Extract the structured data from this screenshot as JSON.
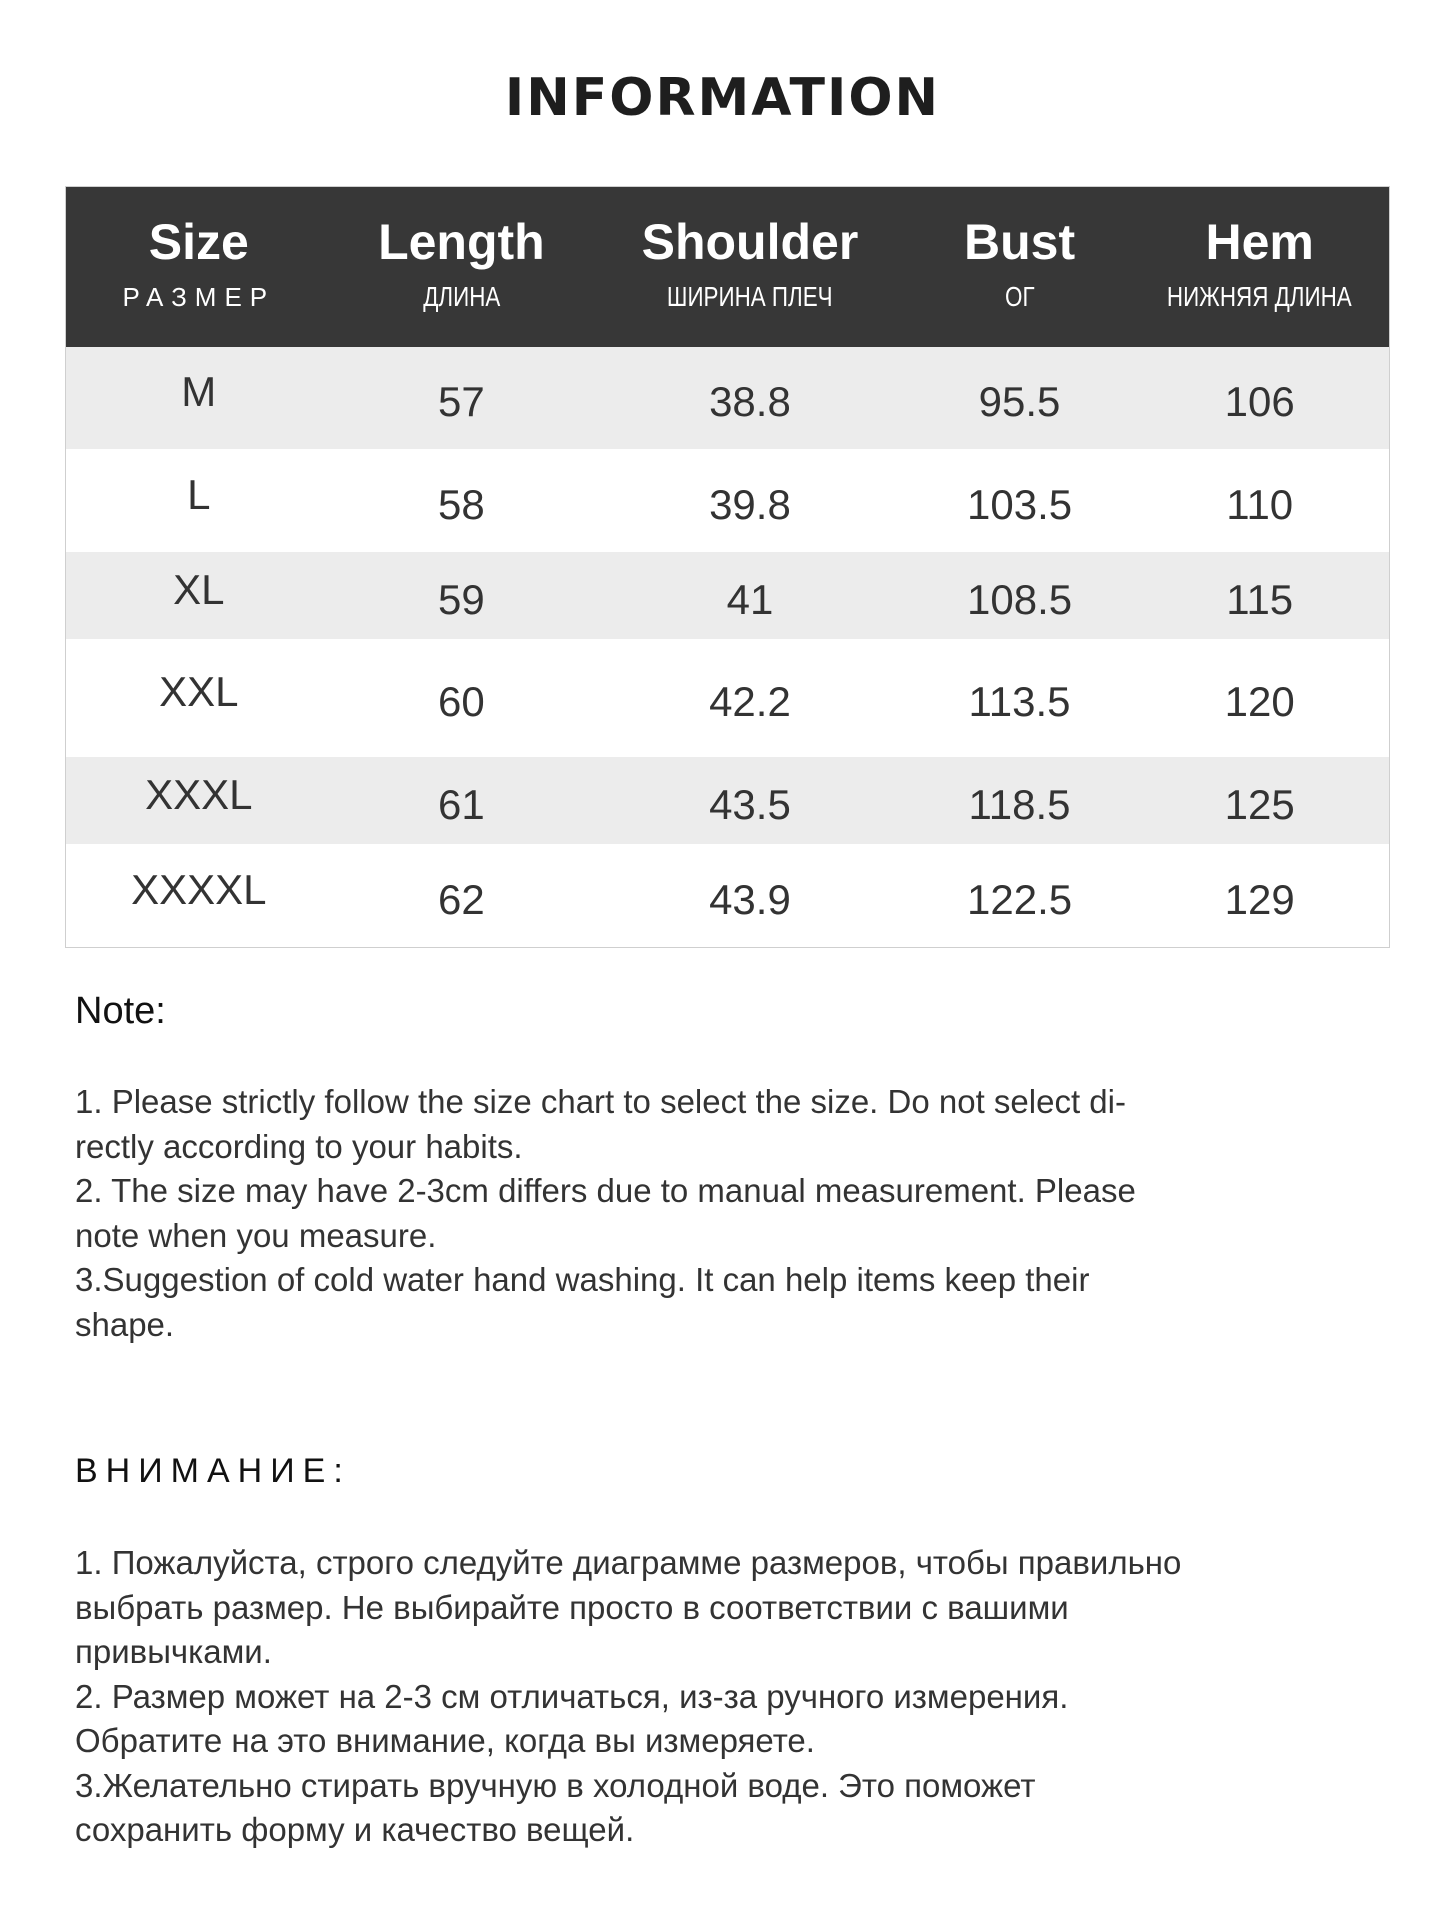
{
  "title": "INFORMATION",
  "table": {
    "headers": [
      {
        "en": "Size",
        "ru": "РАЗМЕР"
      },
      {
        "en": "Length",
        "ru": "ДЛИНА"
      },
      {
        "en": "Shoulder",
        "ru": "ШИРИНА ПЛЕЧ"
      },
      {
        "en": "Bust",
        "ru": "ОГ"
      },
      {
        "en": "Hem",
        "ru": "НИЖНЯЯ ДЛИНА"
      }
    ],
    "rows": [
      [
        "M",
        "57",
        "38.8",
        "95.5",
        "106"
      ],
      [
        "L",
        "58",
        "39.8",
        "103.5",
        "110"
      ],
      [
        "XL",
        "59",
        "41",
        "108.5",
        "115"
      ],
      [
        "XXL",
        "60",
        "42.2",
        "113.5",
        "120"
      ],
      [
        "XXXL",
        "61",
        "43.5",
        "118.5",
        "125"
      ],
      [
        "XXXXL",
        "62",
        "43.9",
        "122.5",
        "129"
      ]
    ]
  },
  "note": {
    "heading": "Note:",
    "lines": [
      "1. Please strictly follow the size chart  to select the size. Do not select di-",
      "rectly according to your habits.",
      "2. The size may have 2-3cm differs due to manual measurement. Please",
      "note when you measure.",
      "3.Suggestion of cold water hand washing. It can help items keep their",
      "shape."
    ]
  },
  "attention": {
    "heading": "ВНИМАНИЕ:",
    "lines": [
      "1. Пожалуйста, строго следуйте диаграмме размеров, чтобы правильно",
      "выбрать размер. Не выбирайте просто в соответствии с вашими",
      "привычками.",
      "2. Размер может на 2-3 см отличаться, из-за ручного измерения.",
      "Обратите на это внимание, когда вы измеряете.",
      "3.Желательно стирать вручную в холодной воде. Это поможет",
      "сохранить форму и качество вещей."
    ]
  }
}
